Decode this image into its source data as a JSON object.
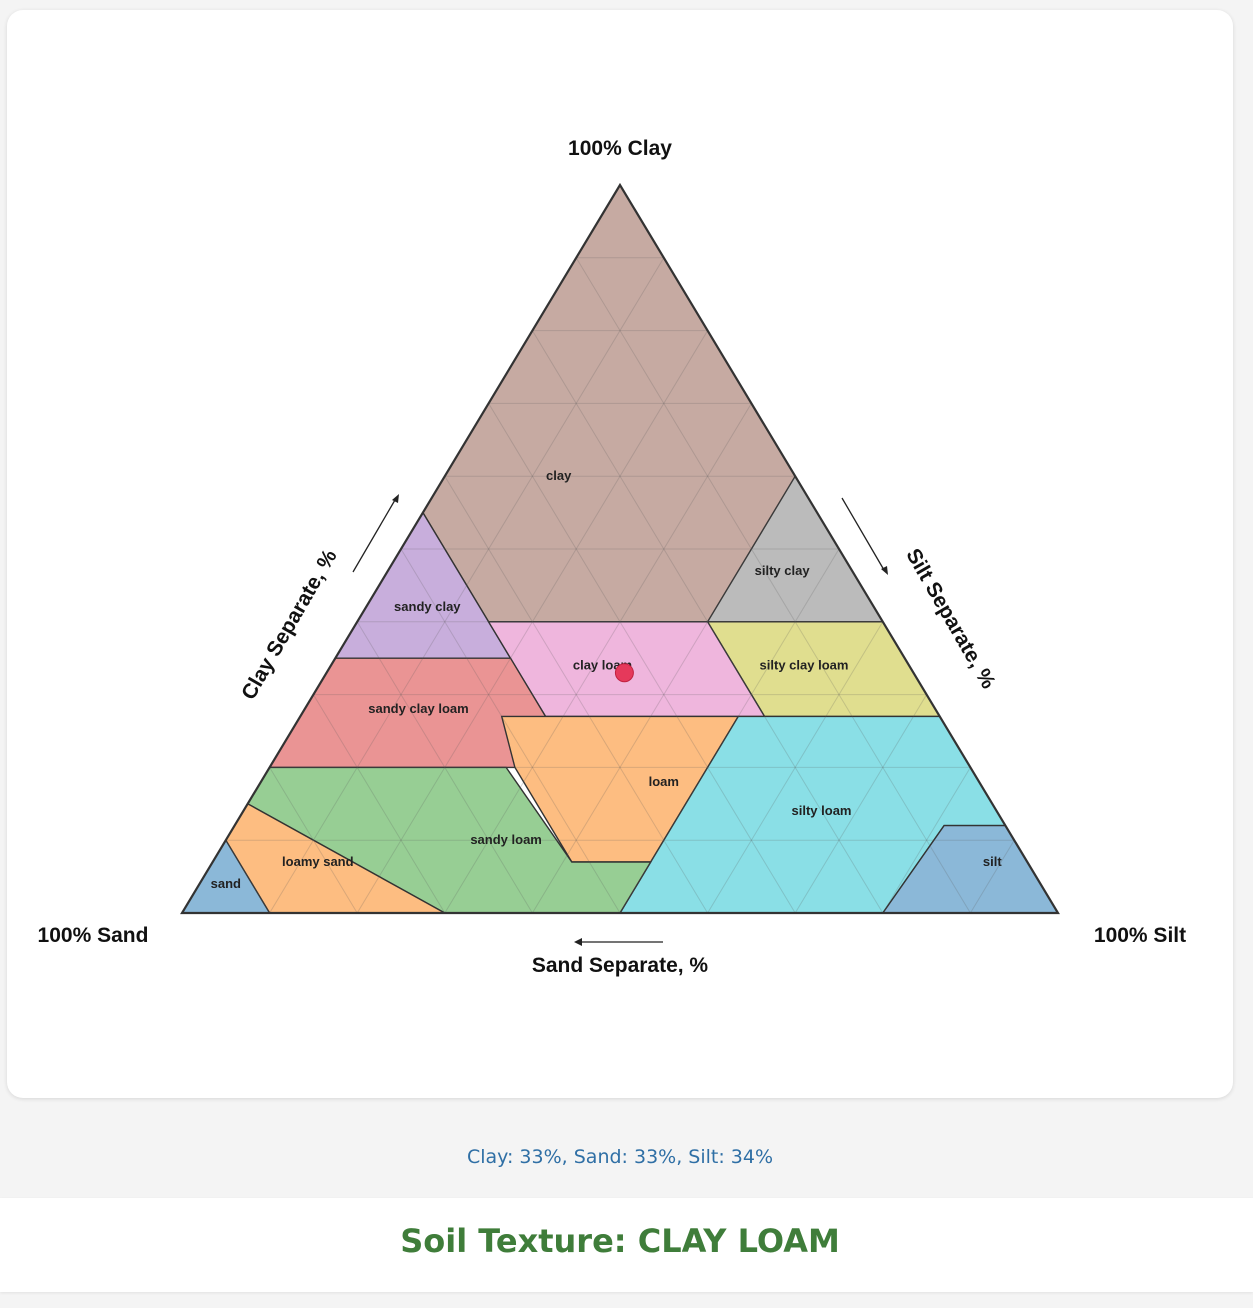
{
  "chart_data": {
    "type": "ternary",
    "vertex_labels": {
      "top": "100% Clay",
      "left": "100% Sand",
      "right": "100% Silt"
    },
    "axis_labels": {
      "clay": "Clay Separate, %",
      "silt": "Silt Separate, %",
      "sand": "Sand Separate, %"
    },
    "grid": true,
    "grid_step": 10,
    "regions": [
      {
        "name": "clay",
        "color": "#c6aaa2",
        "vertices": [
          [
            100,
            0,
            0
          ],
          [
            40,
            0,
            60
          ],
          [
            40,
            45,
            15
          ],
          [
            45,
            45,
            10
          ],
          [
            55,
            45,
            0
          ]
        ]
      },
      {
        "name": "silty clay",
        "color": "#bbbbbb",
        "vertices": [
          [
            60,
            0,
            40
          ],
          [
            40,
            0,
            60
          ],
          [
            40,
            20,
            40
          ]
        ]
      },
      {
        "name": "sandy clay",
        "color": "#c8aedc",
        "vertices": [
          [
            55,
            45,
            0
          ],
          [
            35,
            45,
            20
          ],
          [
            35,
            65,
            0
          ]
        ]
      },
      {
        "name": "silty clay loam",
        "color": "#e0de8f",
        "vertices": [
          [
            40,
            0,
            60
          ],
          [
            27,
            0,
            73
          ],
          [
            27,
            20,
            53
          ],
          [
            40,
            20,
            40
          ]
        ]
      },
      {
        "name": "clay loam",
        "color": "#efb6dd",
        "vertices": [
          [
            40,
            20,
            40
          ],
          [
            27,
            20,
            53
          ],
          [
            27,
            45,
            28
          ],
          [
            40,
            45,
            15
          ]
        ]
      },
      {
        "name": "sandy clay loam",
        "color": "#ea9494",
        "vertices": [
          [
            35,
            45,
            20
          ],
          [
            27,
            45,
            28
          ],
          [
            20,
            45,
            35
          ],
          [
            20,
            80,
            0
          ],
          [
            35,
            65,
            0
          ]
        ]
      },
      {
        "name": "loam",
        "color": "#fdbd81",
        "vertices": [
          [
            27,
            50,
            23
          ],
          [
            27,
            23,
            50
          ],
          [
            7,
            43,
            50
          ],
          [
            7,
            52,
            41
          ],
          [
            20,
            52,
            28
          ]
        ]
      },
      {
        "name": "silty loam",
        "color": "#8adfe6",
        "vertices": [
          [
            27,
            23,
            50
          ],
          [
            27,
            0,
            73
          ],
          [
            12,
            0,
            88
          ],
          [
            12,
            7,
            81
          ],
          [
            0,
            20,
            80
          ],
          [
            0,
            50,
            50
          ],
          [
            7,
            43,
            50
          ]
        ]
      },
      {
        "name": "silt",
        "color": "#8bb8d8",
        "vertices": [
          [
            12,
            0,
            88
          ],
          [
            12,
            7,
            81
          ],
          [
            0,
            20,
            80
          ],
          [
            0,
            0,
            100
          ]
        ]
      },
      {
        "name": "sandy loam",
        "color": "#97ce94",
        "vertices": [
          [
            20,
            80,
            0
          ],
          [
            20,
            53,
            27
          ],
          [
            7,
            52,
            41
          ],
          [
            7,
            43,
            50
          ],
          [
            0,
            50,
            50
          ],
          [
            0,
            70,
            30
          ],
          [
            15,
            85,
            0
          ]
        ]
      },
      {
        "name": "loamy sand",
        "color": "#fdbd81",
        "vertices": [
          [
            15,
            85,
            0
          ],
          [
            0,
            70,
            30
          ],
          [
            0,
            90,
            10
          ],
          [
            10,
            90,
            0
          ]
        ]
      },
      {
        "name": "sand",
        "color": "#8bb8d8",
        "vertices": [
          [
            10,
            90,
            0
          ],
          [
            0,
            90,
            10
          ],
          [
            0,
            100,
            0
          ]
        ]
      }
    ],
    "region_label_positions": [
      {
        "name": "clay",
        "at": [
          60,
          27,
          13
        ]
      },
      {
        "name": "silty clay",
        "at": [
          47,
          8,
          45
        ]
      },
      {
        "name": "sandy clay",
        "at": [
          42,
          51,
          7
        ]
      },
      {
        "name": "silty clay loam",
        "at": [
          34,
          12,
          54
        ]
      },
      {
        "name": "clay loam",
        "at": [
          34,
          35,
          31
        ]
      },
      {
        "name": "sandy clay loam",
        "at": [
          28,
          59,
          13
        ]
      },
      {
        "name": "loam",
        "at": [
          18,
          36,
          46
        ]
      },
      {
        "name": "silty loam",
        "at": [
          14,
          20,
          66
        ]
      },
      {
        "name": "silt",
        "at": [
          7,
          4,
          89
        ]
      },
      {
        "name": "sandy loam",
        "at": [
          10,
          58,
          32
        ]
      },
      {
        "name": "loamy sand",
        "at": [
          7,
          81,
          12
        ]
      },
      {
        "name": "sand",
        "at": [
          4,
          93,
          3
        ]
      }
    ],
    "point": {
      "clay": 33,
      "sand": 33,
      "silt": 34,
      "color": "#e5395b"
    }
  },
  "readout": "Clay: 33%, Sand: 33%, Silt: 34%",
  "result": "Soil Texture: CLAY LOAM"
}
